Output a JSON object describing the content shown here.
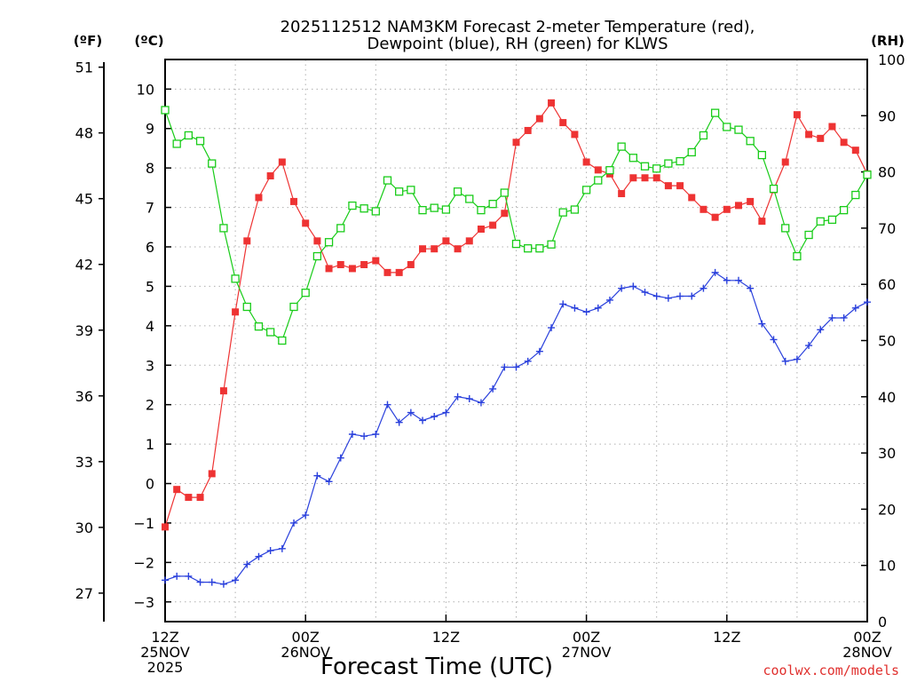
{
  "chart_data": {
    "type": "line",
    "title_line1": "2025112512 NAM3KM Forecast 2-meter Temperature (red),",
    "title_line2": "Dewpoint (blue), RH (green) for KLWS",
    "xlabel": "Forecast Time (UTC)",
    "credit": "coolwx.com/models",
    "unit_f": "(ºF)",
    "unit_c": "(ºC)",
    "unit_rh": "(RH)",
    "x_range_hours": [
      0,
      60
    ],
    "ylim_c": [
      -3.5,
      10.75
    ],
    "ylim_rh": [
      0,
      100
    ],
    "x_ticks": [
      {
        "hour": 0,
        "lines": [
          "12Z",
          "25NOV",
          "2025"
        ]
      },
      {
        "hour": 12,
        "lines": [
          "00Z",
          "26NOV"
        ]
      },
      {
        "hour": 24,
        "lines": [
          "12Z"
        ]
      },
      {
        "hour": 36,
        "lines": [
          "00Z",
          "27NOV"
        ]
      },
      {
        "hour": 48,
        "lines": [
          "12Z"
        ]
      },
      {
        "hour": 60,
        "lines": [
          "00Z",
          "28NOV"
        ]
      }
    ],
    "y_ticks_c": [
      "-3",
      "-2",
      "-1",
      "0",
      "1",
      "2",
      "3",
      "4",
      "5",
      "6",
      "7",
      "8",
      "9",
      "10"
    ],
    "y_ticks_f": [
      "27",
      "30",
      "33",
      "36",
      "39",
      "42",
      "45",
      "48",
      "51"
    ],
    "y_ticks_rh": [
      "0",
      "10",
      "20",
      "30",
      "40",
      "50",
      "60",
      "70",
      "80",
      "90",
      "100"
    ],
    "series": [
      {
        "name": "Temperature",
        "unit": "C",
        "color": "#ee3333",
        "marker": "filled-square",
        "values": [
          -1.1,
          -0.15,
          -0.35,
          -0.35,
          0.25,
          2.35,
          4.35,
          6.15,
          7.25,
          7.8,
          8.15,
          7.15,
          6.6,
          6.15,
          5.45,
          5.55,
          5.45,
          5.55,
          5.65,
          5.35,
          5.35,
          5.55,
          5.95,
          5.95,
          6.15,
          5.95,
          6.15,
          6.45,
          6.55,
          6.85,
          8.65,
          8.95,
          9.25,
          9.65,
          9.15,
          8.85,
          8.15,
          7.95,
          7.85,
          7.35,
          7.75,
          7.75,
          7.75,
          7.55,
          7.55,
          7.25,
          6.95,
          6.75,
          6.95,
          7.05,
          7.15,
          6.65,
          7.45,
          8.15,
          9.35,
          8.85,
          8.75,
          9.05,
          8.65,
          8.45,
          7.85
        ]
      },
      {
        "name": "Dewpoint",
        "unit": "C",
        "color": "#2a40dc",
        "marker": "plus",
        "values": [
          -2.45,
          -2.35,
          -2.35,
          -2.5,
          -2.5,
          -2.55,
          -2.45,
          -2.05,
          -1.85,
          -1.7,
          -1.65,
          -1.0,
          -0.8,
          0.2,
          0.05,
          0.65,
          1.25,
          1.2,
          1.25,
          2.0,
          1.55,
          1.8,
          1.6,
          1.7,
          1.8,
          2.2,
          2.15,
          2.05,
          2.4,
          2.95,
          2.95,
          3.1,
          3.35,
          3.95,
          4.55,
          4.45,
          4.35,
          4.45,
          4.65,
          4.95,
          5.0,
          4.85,
          4.75,
          4.7,
          4.75,
          4.75,
          4.95,
          5.35,
          5.15,
          5.15,
          4.95,
          4.05,
          3.65,
          3.1,
          3.15,
          3.5,
          3.9,
          4.2,
          4.2,
          4.45,
          4.6
        ]
      },
      {
        "name": "RH",
        "unit": "%",
        "color": "#19cc19",
        "marker": "open-square",
        "values": [
          91,
          85,
          86.5,
          85.5,
          81.5,
          70,
          61,
          56,
          52.5,
          51.5,
          50,
          56,
          58.5,
          65,
          67.5,
          70,
          74,
          73.5,
          73,
          78.5,
          76.5,
          76.8,
          73.2,
          73.6,
          73.3,
          76.5,
          75.2,
          73.2,
          74.3,
          76.3,
          67.2,
          66.4,
          66.4,
          67.1,
          72.8,
          73.3,
          76.8,
          78.5,
          80.3,
          84.5,
          82.5,
          81,
          80.6,
          81.5,
          81.9,
          83.5,
          86.5,
          90.5,
          88,
          87.5,
          85.5,
          83,
          77,
          70,
          65,
          68.8,
          71.2,
          71.5,
          73.2,
          75.9,
          79.5
        ]
      }
    ]
  }
}
